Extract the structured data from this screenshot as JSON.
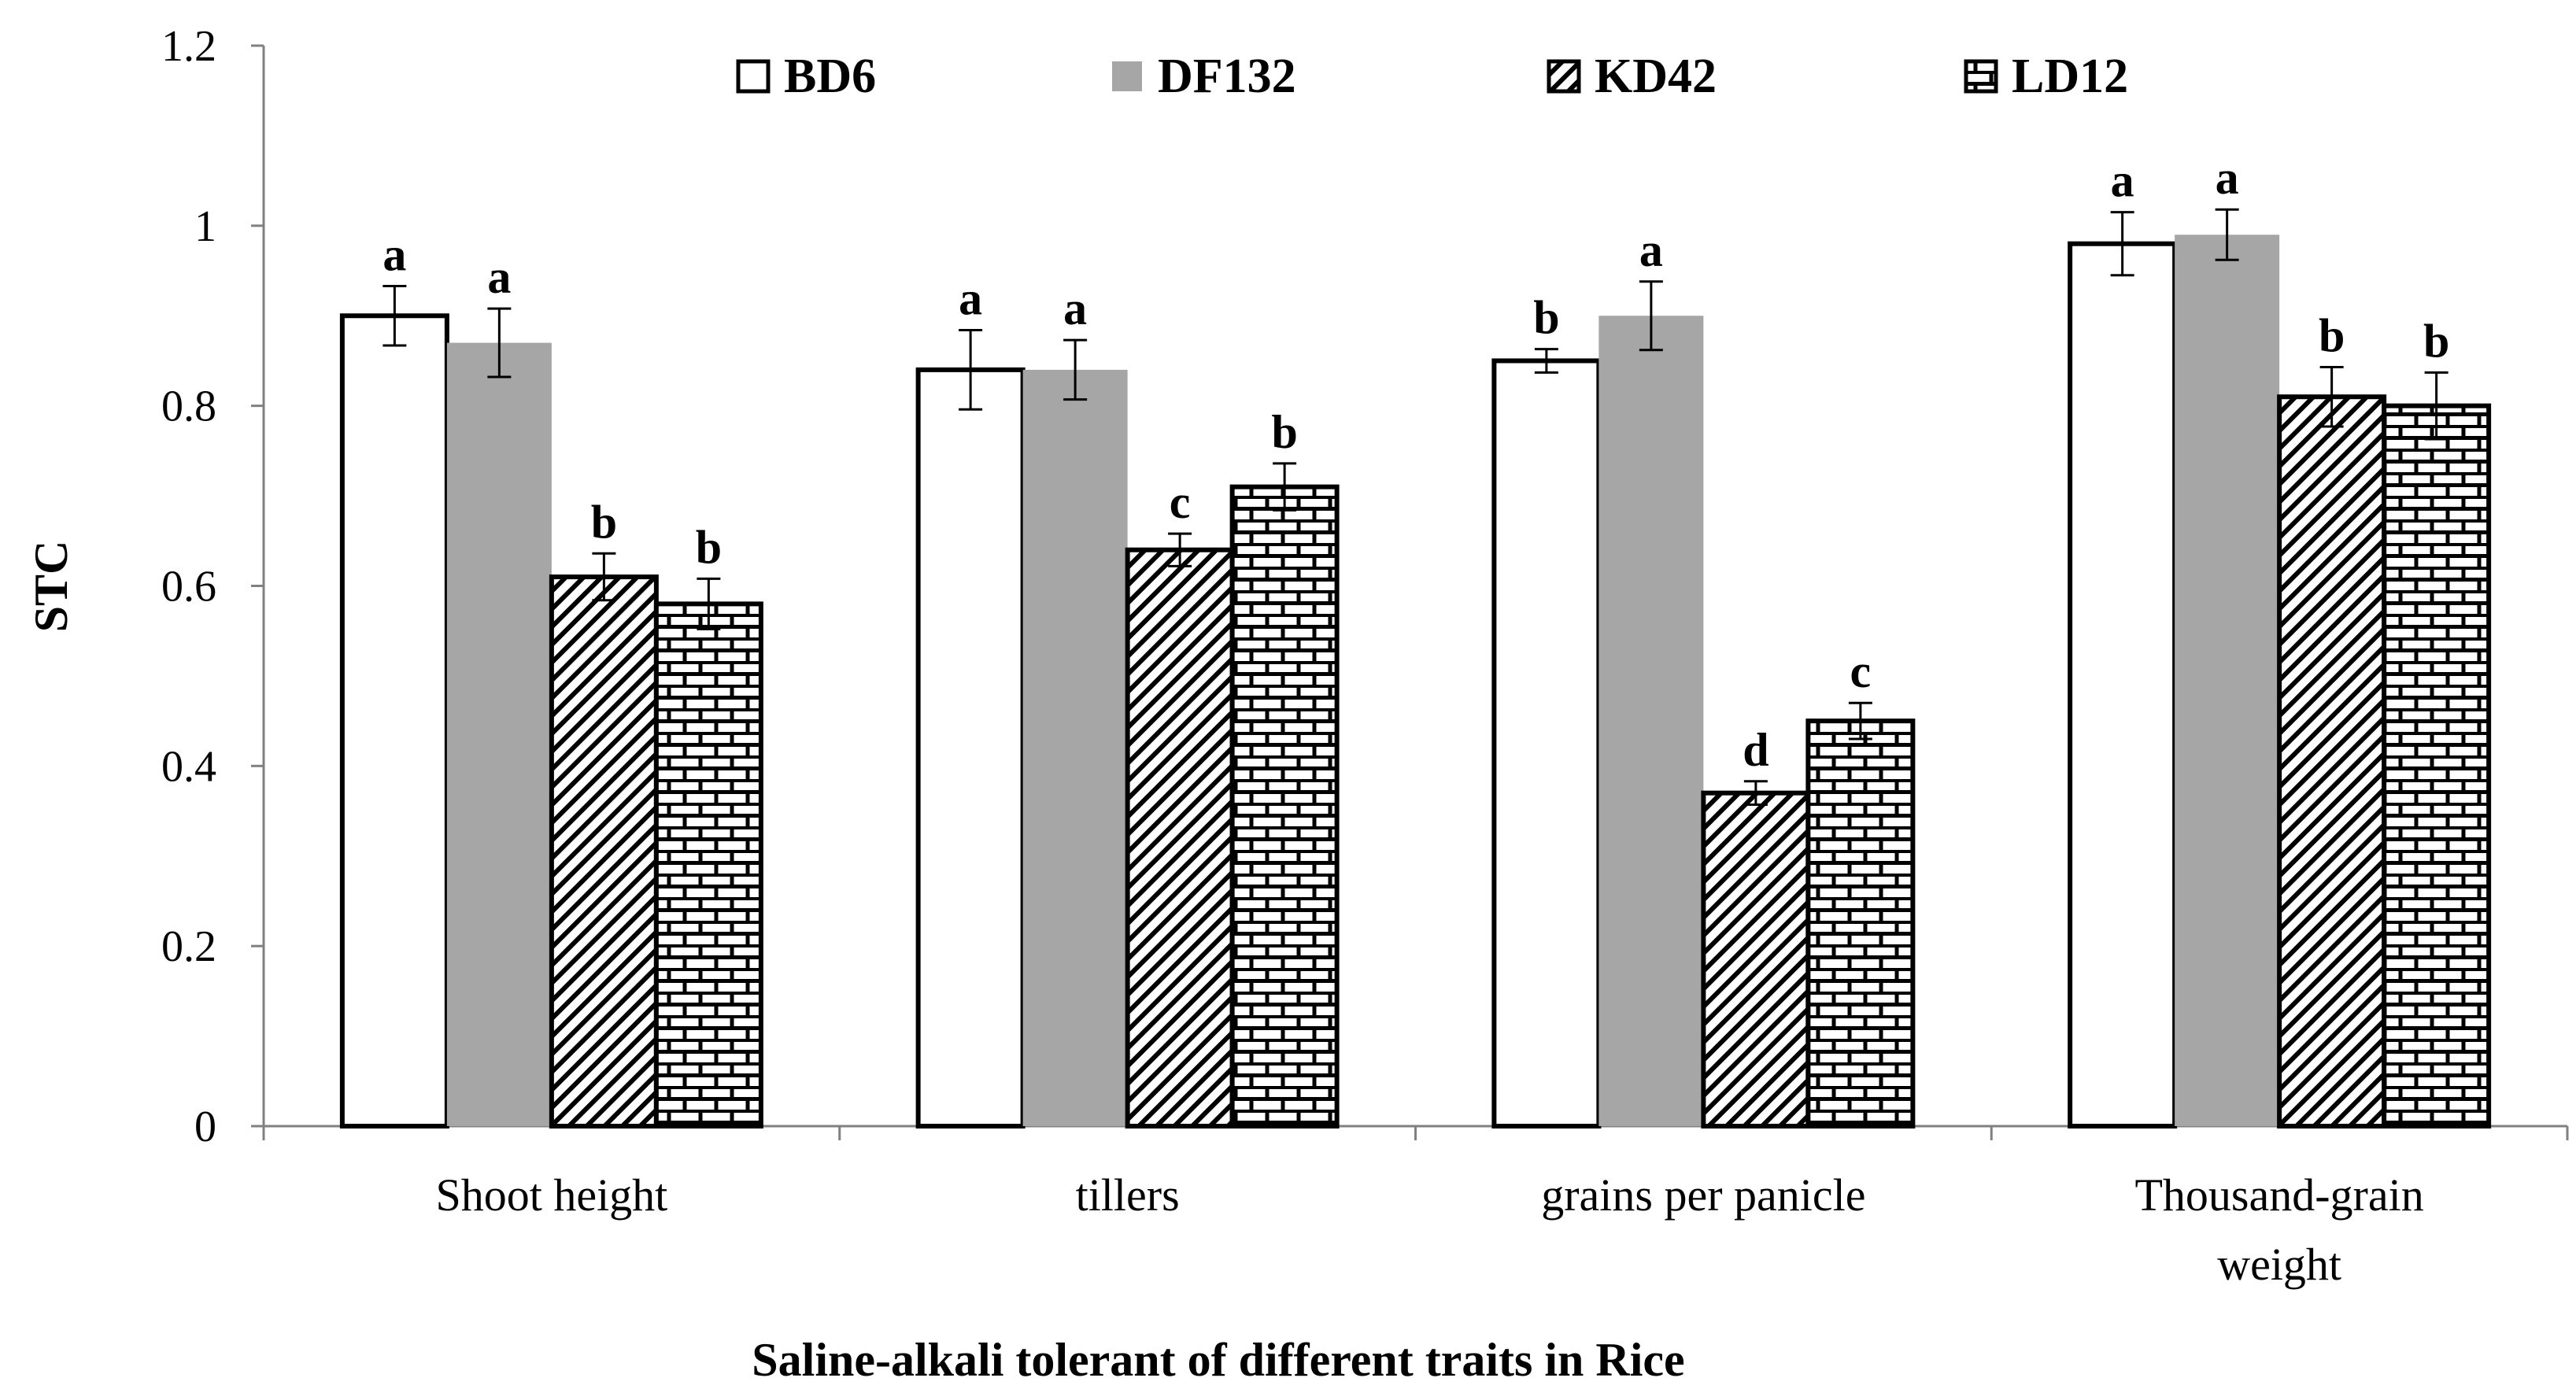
{
  "chart_data": {
    "type": "bar",
    "title": "",
    "xlabel": "Saline-alkali tolerant of different traits in Rice",
    "ylabel": "STC",
    "ylim": [
      0,
      1.2
    ],
    "yticks": [
      "0",
      "0.2",
      "0.4",
      "0.6",
      "0.8",
      "1",
      "1.2"
    ],
    "categories": [
      [
        "Shoot height"
      ],
      [
        "tillers"
      ],
      [
        "grains per panicle"
      ],
      [
        "Thousand-grain",
        "weight"
      ]
    ],
    "legend_position": "top",
    "grid": false,
    "series": [
      {
        "name": "BD6",
        "fill": "white",
        "values": [
          0.9,
          0.84,
          0.85,
          0.98
        ],
        "errors": [
          0.033,
          0.044,
          0.013,
          0.035
        ],
        "labels": [
          "a",
          "a",
          "b",
          "a"
        ]
      },
      {
        "name": "DF132",
        "fill": "gray",
        "color": "#a6a6a6",
        "values": [
          0.87,
          0.84,
          0.9,
          0.99
        ],
        "errors": [
          0.038,
          0.033,
          0.038,
          0.028
        ],
        "labels": [
          "a",
          "a",
          "a",
          "a"
        ]
      },
      {
        "name": "KD42",
        "fill": "diagonal-hatch",
        "values": [
          0.61,
          0.64,
          0.37,
          0.81
        ],
        "errors": [
          0.026,
          0.018,
          0.013,
          0.033
        ],
        "labels": [
          "b",
          "c",
          "d",
          "b"
        ]
      },
      {
        "name": "LD12",
        "fill": "brick",
        "values": [
          0.58,
          0.71,
          0.45,
          0.8
        ],
        "errors": [
          0.028,
          0.026,
          0.02,
          0.037
        ],
        "labels": [
          "b",
          "b",
          "c",
          "b"
        ]
      }
    ]
  }
}
